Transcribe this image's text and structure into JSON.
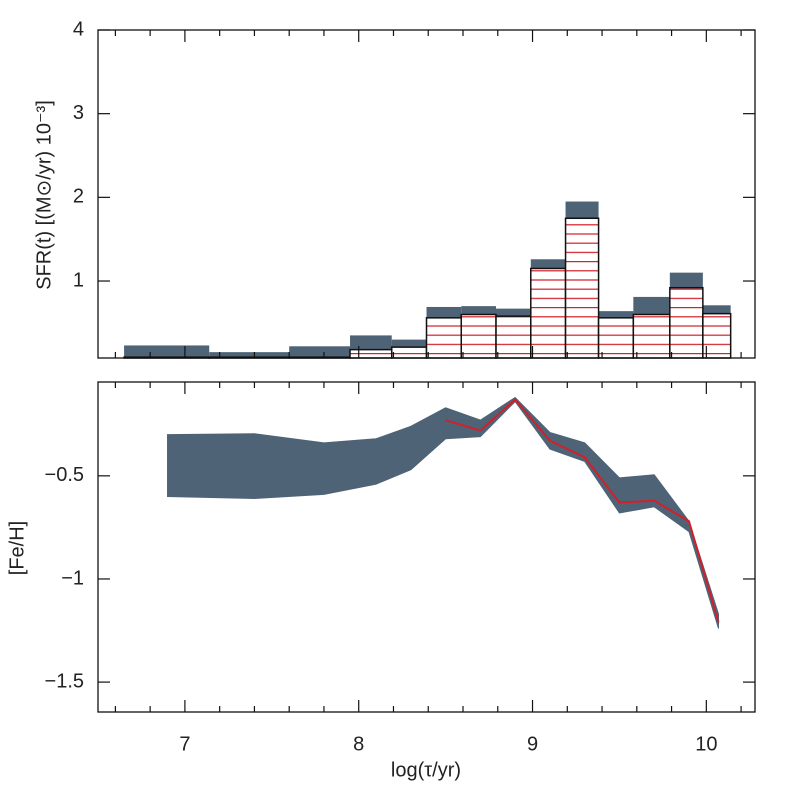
{
  "chart_data": [
    {
      "type": "histogram",
      "ylabel": "SFR(t)  [(M⊙/yr) 10⁻³]",
      "bins": [
        6.65,
        7.14,
        7.6,
        7.95,
        8.19,
        8.39,
        8.59,
        8.79,
        8.99,
        9.19,
        9.38,
        9.58,
        9.79,
        9.98,
        10.14
      ],
      "series": [
        {
          "color": "#4f6377",
          "values": [
            0.23,
            0.15,
            0.22,
            0.35,
            0.3,
            0.69,
            0.7,
            0.67,
            1.26,
            1.95,
            0.64,
            0.81,
            1.1,
            0.71
          ]
        },
        {
          "color": "#d0202a",
          "hatch": true,
          "values": [
            0.09,
            0.09,
            0.09,
            0.18,
            0.21,
            0.56,
            0.6,
            0.58,
            1.15,
            1.75,
            0.56,
            0.6,
            0.92,
            0.61
          ]
        }
      ],
      "xlim": [
        6.5,
        10.28
      ],
      "xticks": [
        7,
        8,
        9,
        10
      ],
      "x_minor_ticks": [
        6.6,
        6.8,
        7.2,
        7.4,
        7.6,
        7.8,
        8.2,
        8.4,
        8.6,
        8.8,
        9.2,
        9.4,
        9.6,
        9.8,
        10.2
      ],
      "ylim": [
        0.08,
        4
      ],
      "yticks": [
        1,
        2,
        3,
        4
      ]
    },
    {
      "type": "line",
      "ylabel": "[Fe/H]",
      "xlabel": "log(τ/yr)",
      "x": [
        6.9,
        7.4,
        7.8,
        8.1,
        8.3,
        8.5,
        8.7,
        8.9,
        9.1,
        9.3,
        9.5,
        9.7,
        9.9,
        10.07
      ],
      "band": {
        "color": "#4f6377",
        "upper": [
          -0.3,
          -0.296,
          -0.34,
          -0.32,
          -0.26,
          -0.17,
          -0.23,
          -0.12,
          -0.29,
          -0.34,
          -0.51,
          -0.495,
          -0.72,
          -1.17
        ],
        "lower": [
          -0.6,
          -0.61,
          -0.59,
          -0.54,
          -0.47,
          -0.32,
          -0.31,
          -0.14,
          -0.37,
          -0.43,
          -0.68,
          -0.65,
          -0.77,
          -1.24
        ]
      },
      "series": [
        {
          "color": "#d0202a",
          "values": [
            null,
            null,
            null,
            null,
            null,
            -0.23,
            -0.28,
            -0.13,
            -0.33,
            -0.41,
            -0.63,
            -0.62,
            -0.72,
            -1.21
          ]
        }
      ],
      "xlim": [
        6.5,
        10.28
      ],
      "xticks": [
        7,
        8,
        9,
        10
      ],
      "x_minor_ticks": [
        6.6,
        6.8,
        7.2,
        7.4,
        7.6,
        7.8,
        8.2,
        8.4,
        8.6,
        8.8,
        9.2,
        9.4,
        9.6,
        9.8,
        10.2
      ],
      "ylim": [
        -1.645,
        -0.045
      ],
      "yticks": [
        {
          "value": -0.5,
          "label": "−0.5"
        },
        {
          "value": -1,
          "label": "−1"
        },
        {
          "value": -1.5,
          "label": "−1.5"
        }
      ]
    }
  ]
}
